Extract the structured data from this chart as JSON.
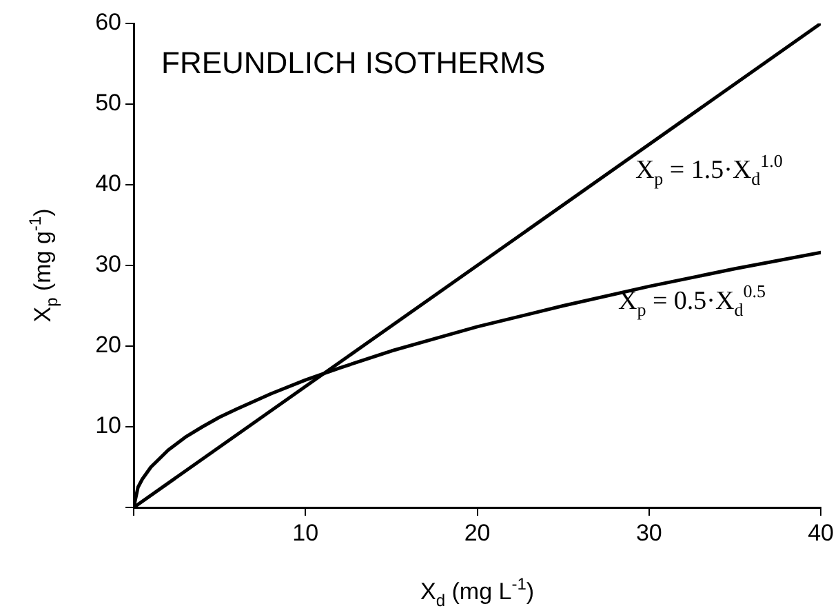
{
  "chart_data": {
    "type": "line",
    "title": "FREUNDLICH ISOTHERMS",
    "xlabel": "X$_{d}$ (mg L$^{-1}$)",
    "ylabel": "X$_{p}$ (mg g$^{-1}$)",
    "series": [
      {
        "color": "#000000",
        "x": [
          0,
          40
        ],
        "values": [
          0,
          60
        ]
      },
      {
        "color": "#000000",
        "x": [
          0,
          0.25,
          0.5,
          1,
          2,
          3,
          4,
          5,
          6,
          8,
          10,
          12,
          15,
          18,
          20,
          25,
          30,
          35,
          40
        ],
        "values": [
          0,
          2.5,
          3.5,
          5,
          7.1,
          8.7,
          10,
          11.2,
          12.2,
          14.1,
          15.8,
          17.3,
          19.4,
          21.2,
          22.4,
          25,
          27.4,
          29.6,
          31.6
        ]
      }
    ],
    "annotations": [
      "X$_{p}$ = 1.5·X$_{d}$$^{1.0}$",
      "X$_{p}$ = 0.5·X$_{d}$$^{0.5}$"
    ],
    "xlim": [
      0,
      40
    ],
    "xticks": [
      {
        "value": 0,
        "label": null
      },
      10,
      20,
      30,
      40
    ],
    "ylim": [
      0,
      60
    ],
    "yticks": [
      {
        "value": 0,
        "label": null
      },
      10,
      20,
      30,
      40,
      50,
      60
    ],
    "grid": false,
    "legend": false,
    "marker": "none",
    "line_style": "solid"
  }
}
